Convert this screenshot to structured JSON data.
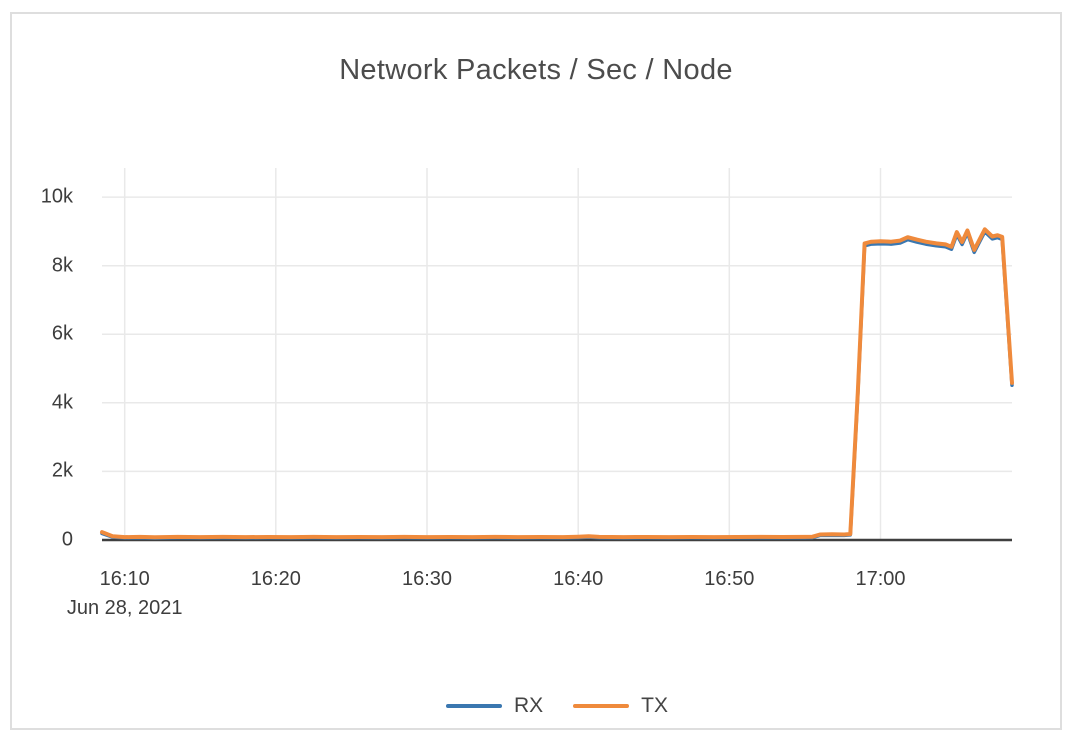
{
  "panel": {
    "title": "Network Packets / Sec / Node"
  },
  "colors": {
    "rx": "#3a77b0",
    "tx": "#ef8a3c",
    "grid": "#e9e9e9",
    "axis_line": "#3f3f3f",
    "tick_text": "#3d3d3d",
    "title_text": "#4c4c4c"
  },
  "chart_data": {
    "type": "line",
    "title": "Network Packets / Sec / Node",
    "xlabel": "",
    "ylabel": "",
    "legend_position": "bottom-center",
    "grid": true,
    "xlim": [
      8.5,
      68.7
    ],
    "ylim": [
      0,
      10790
    ],
    "x_unit": "minutes after 16:00 on Jun 28, 2021",
    "date_label": "Jun 28, 2021",
    "yticks": [
      {
        "value": 0,
        "label": "0"
      },
      {
        "value": 2000,
        "label": "2k"
      },
      {
        "value": 4000,
        "label": "4k"
      },
      {
        "value": 6000,
        "label": "6k"
      },
      {
        "value": 8000,
        "label": "8k"
      },
      {
        "value": 10000,
        "label": "10k"
      }
    ],
    "xticks": [
      {
        "t": 10,
        "label": "16:10",
        "sublabel": "Jun 28, 2021"
      },
      {
        "t": 20,
        "label": "16:20"
      },
      {
        "t": 30,
        "label": "16:30"
      },
      {
        "t": 40,
        "label": "16:40"
      },
      {
        "t": 50,
        "label": "16:50"
      },
      {
        "t": 60,
        "label": "17:00"
      }
    ],
    "series": [
      {
        "name": "RX",
        "color": "#3a77b0",
        "width": 3.5,
        "points": [
          [
            8.5,
            190
          ],
          [
            9.2,
            85
          ],
          [
            10,
            60
          ],
          [
            11,
            65
          ],
          [
            12,
            55
          ],
          [
            13.5,
            65
          ],
          [
            15,
            60
          ],
          [
            16.5,
            65
          ],
          [
            18,
            60
          ],
          [
            19.5,
            63
          ],
          [
            21,
            60
          ],
          [
            22.5,
            65
          ],
          [
            24,
            60
          ],
          [
            25.5,
            63
          ],
          [
            27,
            60
          ],
          [
            28.5,
            65
          ],
          [
            30,
            60
          ],
          [
            31.5,
            63
          ],
          [
            33,
            60
          ],
          [
            34.5,
            65
          ],
          [
            36,
            60
          ],
          [
            37.5,
            63
          ],
          [
            39,
            60
          ],
          [
            40,
            70
          ],
          [
            40.7,
            85
          ],
          [
            41.4,
            65
          ],
          [
            43,
            60
          ],
          [
            44.5,
            63
          ],
          [
            46,
            60
          ],
          [
            47.5,
            63
          ],
          [
            49,
            60
          ],
          [
            50.5,
            63
          ],
          [
            52,
            65
          ],
          [
            53.5,
            63
          ],
          [
            55.0,
            65
          ],
          [
            55.5,
            70
          ],
          [
            56.0,
            135
          ],
          [
            56.8,
            140
          ],
          [
            57.6,
            135
          ],
          [
            58.0,
            150
          ],
          [
            58.5,
            4230
          ],
          [
            58.95,
            8580
          ],
          [
            59.4,
            8630
          ],
          [
            60.0,
            8640
          ],
          [
            60.7,
            8630
          ],
          [
            61.3,
            8660
          ],
          [
            61.8,
            8760
          ],
          [
            62.4,
            8690
          ],
          [
            63.0,
            8630
          ],
          [
            63.7,
            8580
          ],
          [
            64.3,
            8550
          ],
          [
            64.7,
            8480
          ],
          [
            65.05,
            8910
          ],
          [
            65.4,
            8620
          ],
          [
            65.75,
            8960
          ],
          [
            66.2,
            8390
          ],
          [
            66.9,
            8990
          ],
          [
            67.4,
            8780
          ],
          [
            67.75,
            8820
          ],
          [
            68.05,
            8770
          ],
          [
            68.7,
            4510
          ]
        ]
      },
      {
        "name": "TX",
        "color": "#ef8a3c",
        "width": 4,
        "points": [
          [
            8.5,
            230
          ],
          [
            9.2,
            110
          ],
          [
            10,
            85
          ],
          [
            11,
            90
          ],
          [
            12,
            80
          ],
          [
            13.5,
            90
          ],
          [
            15,
            85
          ],
          [
            16.5,
            90
          ],
          [
            18,
            85
          ],
          [
            19.5,
            88
          ],
          [
            21,
            85
          ],
          [
            22.5,
            90
          ],
          [
            24,
            85
          ],
          [
            25.5,
            88
          ],
          [
            27,
            85
          ],
          [
            28.5,
            90
          ],
          [
            30,
            85
          ],
          [
            31.5,
            88
          ],
          [
            33,
            85
          ],
          [
            34.5,
            90
          ],
          [
            36,
            85
          ],
          [
            37.5,
            88
          ],
          [
            39,
            85
          ],
          [
            40,
            95
          ],
          [
            40.7,
            110
          ],
          [
            41.4,
            90
          ],
          [
            43,
            85
          ],
          [
            44.5,
            88
          ],
          [
            46,
            85
          ],
          [
            47.5,
            88
          ],
          [
            49,
            85
          ],
          [
            50.5,
            88
          ],
          [
            52,
            90
          ],
          [
            53.5,
            88
          ],
          [
            55.0,
            90
          ],
          [
            55.5,
            95
          ],
          [
            56.0,
            160
          ],
          [
            56.8,
            165
          ],
          [
            57.6,
            160
          ],
          [
            58.0,
            175
          ],
          [
            58.5,
            4300
          ],
          [
            58.95,
            8650
          ],
          [
            59.4,
            8700
          ],
          [
            60.0,
            8710
          ],
          [
            60.7,
            8700
          ],
          [
            61.3,
            8730
          ],
          [
            61.8,
            8830
          ],
          [
            62.4,
            8760
          ],
          [
            63.0,
            8700
          ],
          [
            63.7,
            8650
          ],
          [
            64.3,
            8620
          ],
          [
            64.7,
            8550
          ],
          [
            65.05,
            8980
          ],
          [
            65.4,
            8690
          ],
          [
            65.75,
            9030
          ],
          [
            66.2,
            8460
          ],
          [
            66.9,
            9060
          ],
          [
            67.4,
            8850
          ],
          [
            67.75,
            8890
          ],
          [
            68.05,
            8840
          ],
          [
            68.7,
            4580
          ]
        ]
      }
    ]
  }
}
